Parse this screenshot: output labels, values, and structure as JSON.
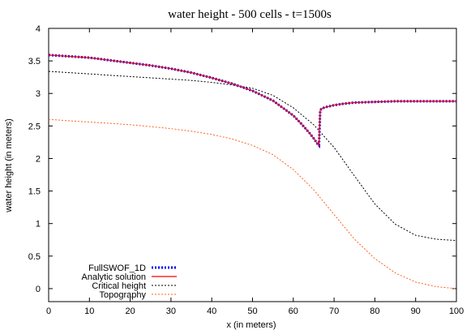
{
  "chart_data": {
    "type": "line",
    "title": "water height - 500 cells - t=1500s",
    "xlabel": "x (in meters)",
    "ylabel": "water height (in meters)",
    "xlim": [
      0,
      100
    ],
    "ylim": [
      -0.2,
      4
    ],
    "xticks": [
      0,
      10,
      20,
      30,
      40,
      50,
      60,
      70,
      80,
      90,
      100
    ],
    "yticks": [
      0,
      0.5,
      1,
      1.5,
      2,
      2.5,
      3,
      3.5,
      4
    ],
    "grid": false,
    "legend_position": "bottom-left",
    "series": [
      {
        "name": "FullSWOF_1D",
        "color": "#0000ff",
        "style": "dotted-thick",
        "x": [
          0,
          5,
          10,
          15,
          20,
          25,
          30,
          35,
          40,
          45,
          50,
          55,
          60,
          62,
          64,
          65,
          66,
          66.3,
          66.6,
          67,
          68,
          70,
          72,
          75,
          80,
          85,
          90,
          95,
          100
        ],
        "y": [
          3.59,
          3.57,
          3.55,
          3.51,
          3.47,
          3.43,
          3.38,
          3.32,
          3.24,
          3.15,
          3.04,
          2.89,
          2.66,
          2.53,
          2.39,
          2.31,
          2.22,
          2.2,
          2.74,
          2.77,
          2.79,
          2.82,
          2.84,
          2.86,
          2.87,
          2.88,
          2.88,
          2.88,
          2.88
        ]
      },
      {
        "name": "Analytic solution",
        "color": "#ff0000",
        "style": "solid",
        "x": [
          0,
          5,
          10,
          15,
          20,
          25,
          30,
          35,
          40,
          45,
          50,
          55,
          60,
          62,
          64,
          65,
          66,
          66.3,
          66.6,
          67,
          68,
          70,
          72,
          75,
          80,
          85,
          90,
          95,
          100
        ],
        "y": [
          3.59,
          3.57,
          3.55,
          3.51,
          3.47,
          3.43,
          3.38,
          3.32,
          3.24,
          3.15,
          3.04,
          2.89,
          2.66,
          2.53,
          2.39,
          2.31,
          2.22,
          2.2,
          2.74,
          2.77,
          2.79,
          2.82,
          2.84,
          2.86,
          2.87,
          2.88,
          2.88,
          2.88,
          2.88
        ]
      },
      {
        "name": "Critical height",
        "color": "#000000",
        "style": "dotted",
        "x": [
          0,
          5,
          10,
          15,
          20,
          25,
          30,
          35,
          40,
          45,
          50,
          55,
          60,
          65,
          70,
          75,
          80,
          85,
          90,
          95,
          100
        ],
        "y": [
          3.34,
          3.32,
          3.3,
          3.28,
          3.26,
          3.24,
          3.22,
          3.2,
          3.17,
          3.13,
          3.08,
          2.97,
          2.78,
          2.52,
          2.17,
          1.73,
          1.3,
          0.99,
          0.82,
          0.76,
          0.74
        ]
      },
      {
        "name": "Topography",
        "color": "#ff6020",
        "style": "dotted",
        "x": [
          0,
          5,
          10,
          15,
          20,
          25,
          30,
          35,
          40,
          45,
          50,
          55,
          60,
          65,
          70,
          75,
          80,
          85,
          90,
          95,
          100
        ],
        "y": [
          2.6,
          2.58,
          2.56,
          2.54,
          2.52,
          2.49,
          2.46,
          2.42,
          2.37,
          2.3,
          2.2,
          2.06,
          1.83,
          1.52,
          1.14,
          0.76,
          0.46,
          0.24,
          0.1,
          0.03,
          0.0
        ]
      }
    ]
  }
}
